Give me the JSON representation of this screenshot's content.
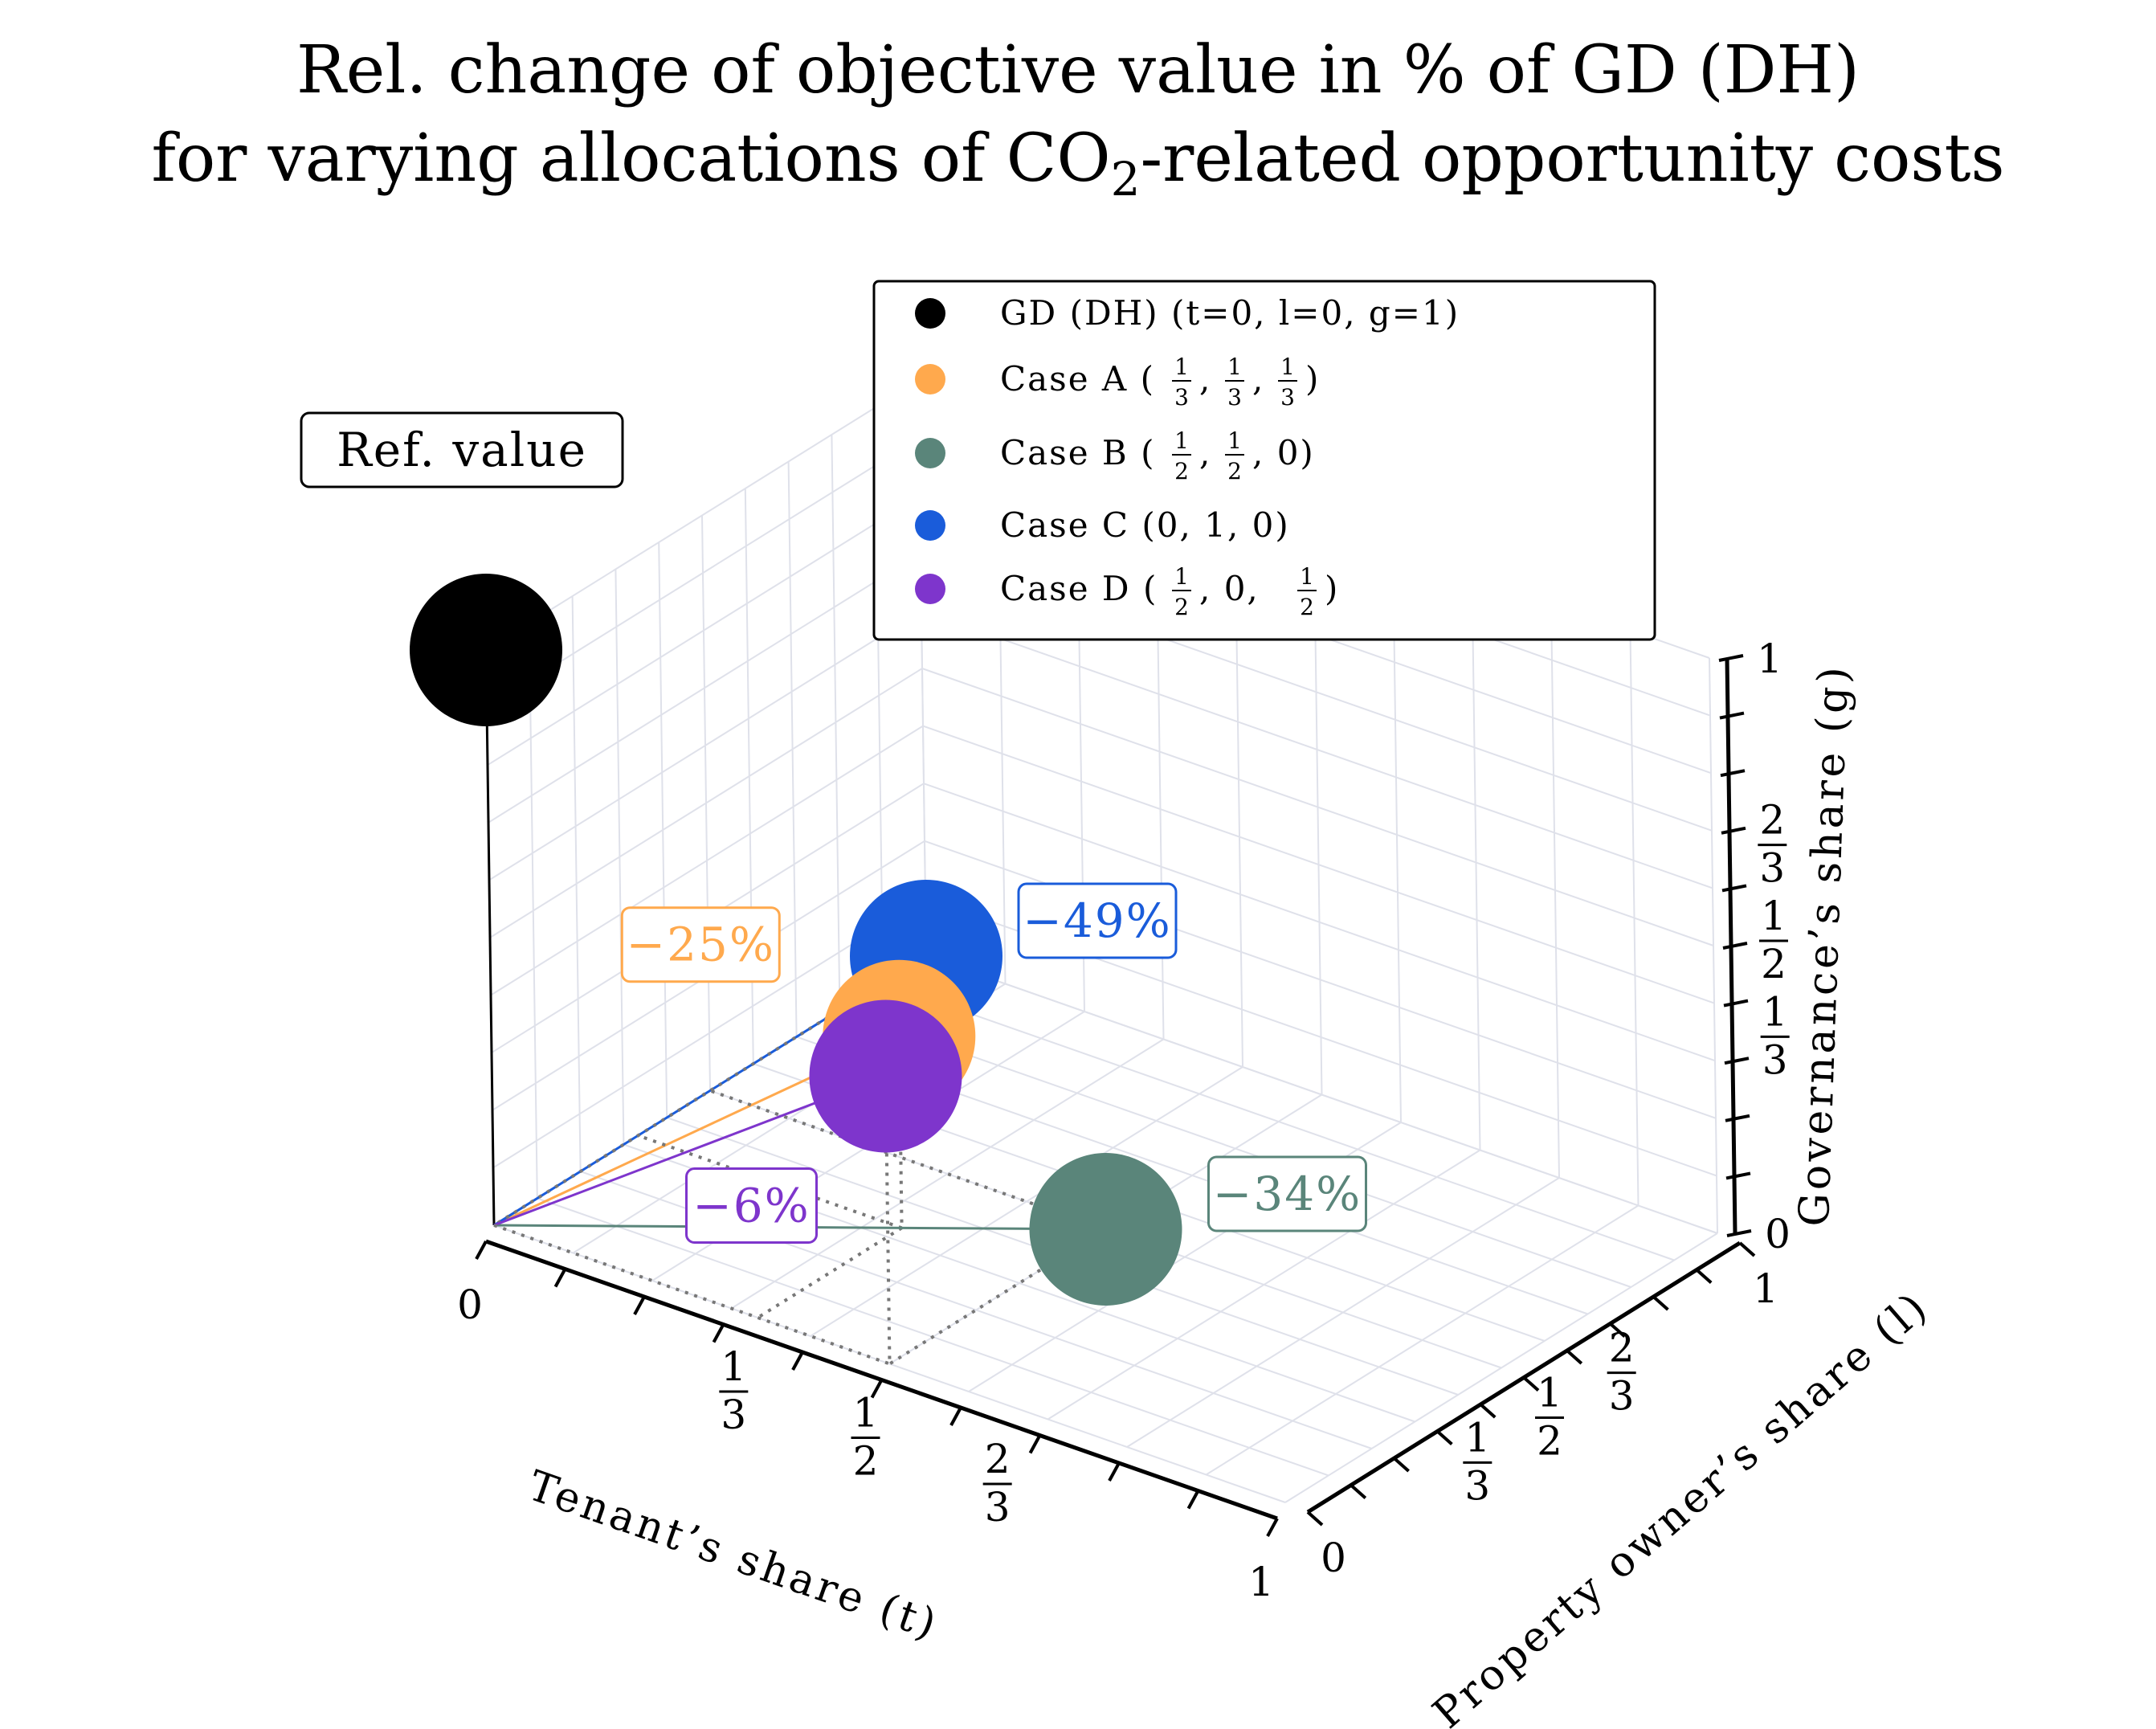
{
  "chart_data": {
    "type": "scatter3d",
    "title_line1": "Rel. change of objective value in % of GD (DH)",
    "title_line2_pre": "for varying allocations of CO",
    "title_line2_sub": "2",
    "title_line2_post": "-related opportunity costs",
    "axes": {
      "x": {
        "label": "Tenant’s share (t)",
        "ticks": [
          "0",
          "1/3",
          "1/2",
          "2/3",
          "1"
        ],
        "range": [
          0,
          1
        ]
      },
      "y": {
        "label": "Property owner’s share (l)",
        "ticks": [
          "0",
          "1/3",
          "1/2",
          "2/3",
          "1"
        ],
        "range": [
          0,
          1
        ]
      },
      "z": {
        "label": "Governance’s share (g)",
        "ticks": [
          "0",
          "1/3",
          "1/2",
          "2/3",
          "1"
        ],
        "range": [
          0,
          1
        ]
      }
    },
    "grid": true,
    "legend_position": "top-right",
    "series": [
      {
        "name": "GD (DH) (t=0, l=0, g=1)",
        "legend_suffix": "",
        "t": 0,
        "l": 0,
        "g": 1,
        "color": "#000000",
        "annotation": "Ref. value",
        "annotation_color": "#000000",
        "annotation_side": "left"
      },
      {
        "name": "Case A (1/3, 1/3, 1/3)",
        "t": 0.3333,
        "l": 0.3333,
        "g": 0.3333,
        "color": "#FFA94D",
        "annotation": "−25%",
        "annotation_color": "#FFA94D",
        "annotation_side": "left"
      },
      {
        "name": "Case B (1/2, 1/2, 0)",
        "t": 0.5,
        "l": 0.5,
        "g": 0,
        "color": "#5A857A",
        "annotation": "−34%",
        "annotation_color": "#5A857A",
        "annotation_side": "right"
      },
      {
        "name": "Case C (0, 1, 0)",
        "t": 0,
        "l": 1,
        "g": 0,
        "color": "#1A5CDA",
        "annotation": "−49%",
        "annotation_color": "#1A5CDA",
        "annotation_side": "right"
      },
      {
        "name": "Case D (1/2, 0, 1/2)",
        "t": 0.5,
        "l": 0,
        "g": 0.5,
        "color": "#7E35CC",
        "annotation": "−6%",
        "annotation_color": "#7E35CC",
        "annotation_side": "below"
      }
    ],
    "legend": [
      {
        "main": "GD (DH) (",
        "parts": [
          "t=0, ",
          "l=0, ",
          "g=1)"
        ]
      },
      {
        "main": "Case A (",
        "fracs": [
          "1/3",
          "1/3",
          "1/3"
        ],
        "close": ")"
      },
      {
        "main": "Case B (",
        "fracs": [
          "1/2",
          "1/2"
        ],
        "tail": ", 0)"
      },
      {
        "main": "Case C (0, 1, 0)"
      },
      {
        "main": "Case D (",
        "fracs": [
          "1/2"
        ],
        "mid": ", 0, ",
        "fracs2": [
          "1/2"
        ],
        "close": ")"
      }
    ]
  }
}
